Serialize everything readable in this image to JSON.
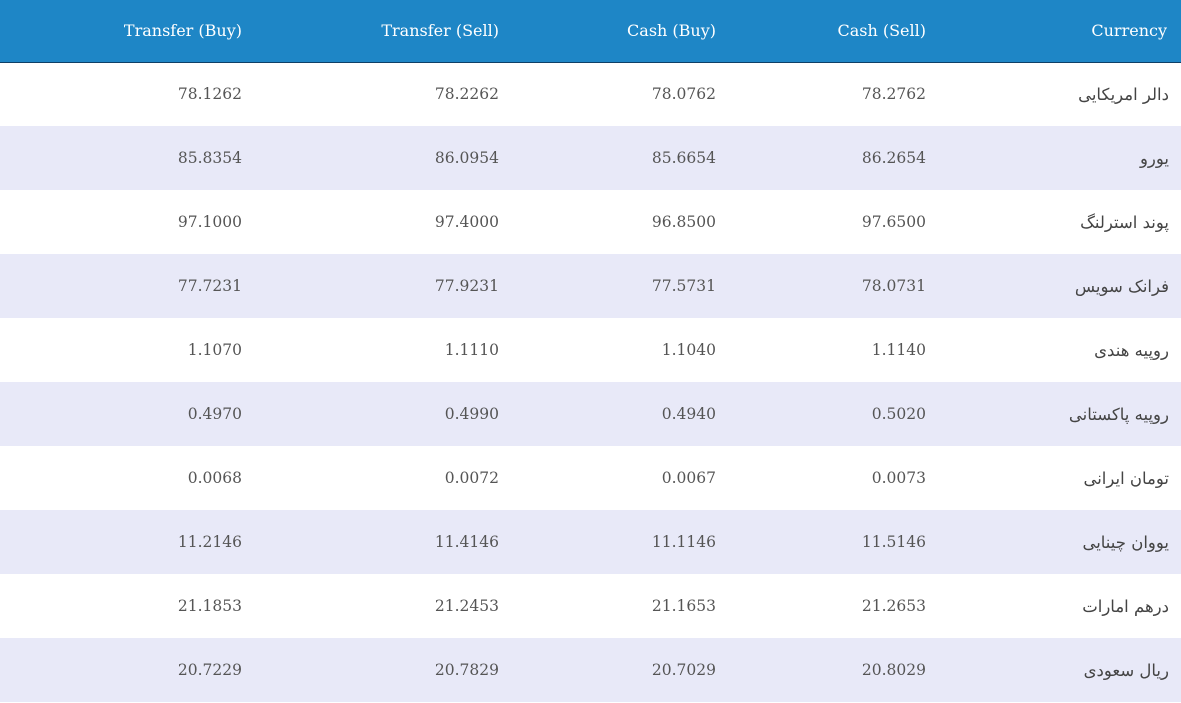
{
  "table": {
    "headers": {
      "transfer_buy": "Transfer (Buy)",
      "transfer_sell": "Transfer (Sell)",
      "cash_buy": "Cash (Buy)",
      "cash_sell": "Cash (Sell)",
      "currency": "Currency"
    },
    "rows": [
      {
        "transfer_buy": "78.1262",
        "transfer_sell": "78.2262",
        "cash_buy": "78.0762",
        "cash_sell": "78.2762",
        "currency": "دالر امریکایی"
      },
      {
        "transfer_buy": "85.8354",
        "transfer_sell": "86.0954",
        "cash_buy": "85.6654",
        "cash_sell": "86.2654",
        "currency": "یورو"
      },
      {
        "transfer_buy": "97.1000",
        "transfer_sell": "97.4000",
        "cash_buy": "96.8500",
        "cash_sell": "97.6500",
        "currency": "پوند استرلنگ"
      },
      {
        "transfer_buy": "77.7231",
        "transfer_sell": "77.9231",
        "cash_buy": "77.5731",
        "cash_sell": "78.0731",
        "currency": "فرانک سویس"
      },
      {
        "transfer_buy": "1.1070",
        "transfer_sell": "1.1110",
        "cash_buy": "1.1040",
        "cash_sell": "1.1140",
        "currency": "روپیه هندی"
      },
      {
        "transfer_buy": "0.4970",
        "transfer_sell": "0.4990",
        "cash_buy": "0.4940",
        "cash_sell": "0.5020",
        "currency": "روپیه پاکستانی"
      },
      {
        "transfer_buy": "0.0068",
        "transfer_sell": "0.0072",
        "cash_buy": "0.0067",
        "cash_sell": "0.0073",
        "currency": "تومان ایرانی"
      },
      {
        "transfer_buy": "11.2146",
        "transfer_sell": "11.4146",
        "cash_buy": "11.1146",
        "cash_sell": "11.5146",
        "currency": "یووان چینایی"
      },
      {
        "transfer_buy": "21.1853",
        "transfer_sell": "21.2453",
        "cash_buy": "21.1653",
        "cash_sell": "21.2653",
        "currency": "درهم امارات"
      },
      {
        "transfer_buy": "20.7229",
        "transfer_sell": "20.7829",
        "cash_buy": "20.7029",
        "cash_sell": "20.8029",
        "currency": "ریال سعودی"
      }
    ]
  },
  "colors": {
    "header_background": "#1e86c6",
    "header_text": "#ffffff",
    "row_odd": "#ffffff",
    "row_even": "#e8e9f8",
    "cell_text": "#555555"
  }
}
